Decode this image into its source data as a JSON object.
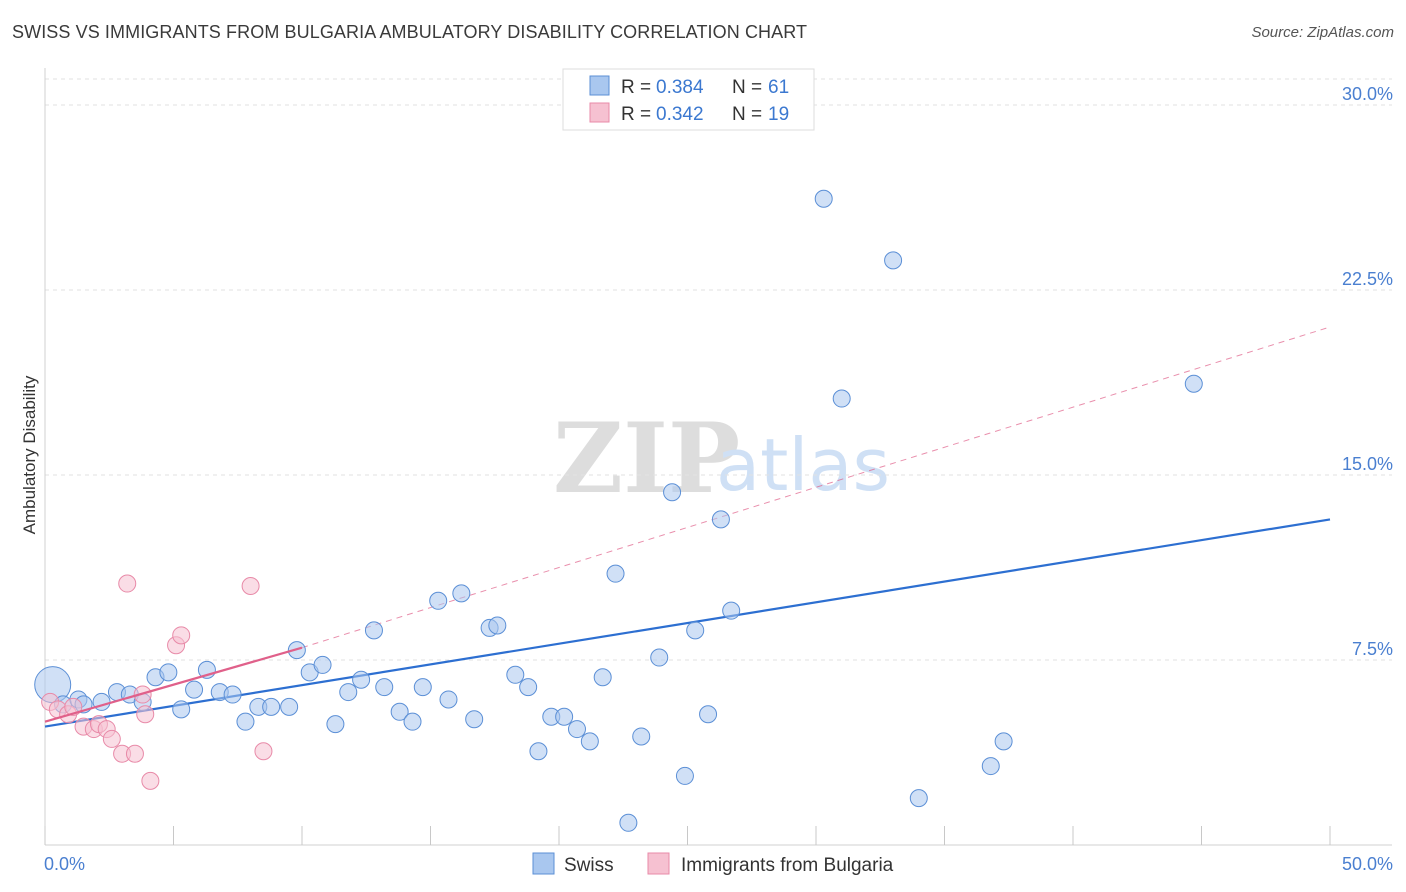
{
  "header": {
    "title": "SWISS VS IMMIGRANTS FROM BULGARIA AMBULATORY DISABILITY CORRELATION CHART",
    "source": "Source: ZipAtlas.com"
  },
  "watermark": {
    "zip": "ZIP",
    "atlas": "atlas"
  },
  "chart_data": {
    "type": "scatter",
    "title": "SWISS VS IMMIGRANTS FROM BULGARIA AMBULATORY DISABILITY CORRELATION CHART",
    "xlabel": "",
    "ylabel": "Ambulatory Disability",
    "xlim": [
      0,
      50
    ],
    "ylim": [
      0,
      31.5
    ],
    "x_tick_labels": [
      "0.0%",
      "50.0%"
    ],
    "y_ticks": [
      7.5,
      15.0,
      22.5,
      30.0
    ],
    "y_tick_labels": [
      "7.5%",
      "15.0%",
      "22.5%",
      "30.0%"
    ],
    "grid": true,
    "legend": {
      "placement": "top-center",
      "entries": [
        {
          "series": "Swiss",
          "r_label": "R =",
          "r_value": "0.384",
          "n_label": "N =",
          "n_value": "61"
        },
        {
          "series": "Immigrants from Bulgaria",
          "r_label": "R =",
          "r_value": "0.342",
          "n_label": "N =",
          "n_value": "19"
        }
      ]
    },
    "series": [
      {
        "name": "Swiss",
        "color": "#5b8fd6",
        "fill": "#a9c7ef",
        "trend": {
          "x0": 0,
          "y0": 4.8,
          "x1": 50,
          "y1": 13.2,
          "color": "#2d6fd1"
        },
        "points": [
          {
            "x": 0.3,
            "y": 6.5,
            "size": "large"
          },
          {
            "x": 0.7,
            "y": 5.7
          },
          {
            "x": 1.3,
            "y": 5.9
          },
          {
            "x": 1.5,
            "y": 5.7
          },
          {
            "x": 2.2,
            "y": 5.8
          },
          {
            "x": 2.8,
            "y": 6.2
          },
          {
            "x": 3.3,
            "y": 6.1
          },
          {
            "x": 3.8,
            "y": 5.8
          },
          {
            "x": 4.3,
            "y": 6.8
          },
          {
            "x": 4.8,
            "y": 7.0
          },
          {
            "x": 5.3,
            "y": 5.5
          },
          {
            "x": 5.8,
            "y": 6.3
          },
          {
            "x": 6.3,
            "y": 7.1
          },
          {
            "x": 6.8,
            "y": 6.2
          },
          {
            "x": 7.3,
            "y": 6.1
          },
          {
            "x": 7.8,
            "y": 5.0
          },
          {
            "x": 8.3,
            "y": 5.6
          },
          {
            "x": 8.8,
            "y": 5.6
          },
          {
            "x": 9.5,
            "y": 5.6
          },
          {
            "x": 9.8,
            "y": 7.9
          },
          {
            "x": 10.3,
            "y": 7.0
          },
          {
            "x": 10.8,
            "y": 7.3
          },
          {
            "x": 11.3,
            "y": 4.9
          },
          {
            "x": 11.8,
            "y": 6.2
          },
          {
            "x": 12.3,
            "y": 6.7
          },
          {
            "x": 12.8,
            "y": 8.7
          },
          {
            "x": 13.2,
            "y": 6.4
          },
          {
            "x": 13.8,
            "y": 5.4
          },
          {
            "x": 14.3,
            "y": 5.0
          },
          {
            "x": 14.7,
            "y": 6.4
          },
          {
            "x": 15.3,
            "y": 9.9
          },
          {
            "x": 15.7,
            "y": 5.9
          },
          {
            "x": 16.2,
            "y": 10.2
          },
          {
            "x": 16.7,
            "y": 5.1
          },
          {
            "x": 17.3,
            "y": 8.8
          },
          {
            "x": 17.6,
            "y": 8.9
          },
          {
            "x": 18.3,
            "y": 6.9
          },
          {
            "x": 18.8,
            "y": 6.4
          },
          {
            "x": 19.2,
            "y": 3.8
          },
          {
            "x": 19.7,
            "y": 5.2
          },
          {
            "x": 20.2,
            "y": 5.2
          },
          {
            "x": 20.7,
            "y": 4.7
          },
          {
            "x": 21.2,
            "y": 4.2
          },
          {
            "x": 21.7,
            "y": 6.8
          },
          {
            "x": 22.2,
            "y": 11.0
          },
          {
            "x": 22.7,
            "y": 0.9
          },
          {
            "x": 23.2,
            "y": 4.4
          },
          {
            "x": 23.9,
            "y": 7.6
          },
          {
            "x": 24.4,
            "y": 14.3
          },
          {
            "x": 24.9,
            "y": 2.8
          },
          {
            "x": 25.3,
            "y": 8.7
          },
          {
            "x": 25.8,
            "y": 5.3
          },
          {
            "x": 26.3,
            "y": 13.2
          },
          {
            "x": 26.7,
            "y": 9.5
          },
          {
            "x": 30.3,
            "y": 26.2
          },
          {
            "x": 31.0,
            "y": 18.1
          },
          {
            "x": 33.0,
            "y": 23.7
          },
          {
            "x": 34.0,
            "y": 1.9
          },
          {
            "x": 36.8,
            "y": 3.2
          },
          {
            "x": 37.3,
            "y": 4.2
          },
          {
            "x": 44.7,
            "y": 18.7
          }
        ]
      },
      {
        "name": "Immigrants from Bulgaria",
        "color": "#e88aa8",
        "fill": "#f6c1d1",
        "trend": {
          "x0": 0,
          "y0": 5.0,
          "x1": 10,
          "y1": 8.0,
          "x_dash_end": 50,
          "y_dash_end": 21.0,
          "color": "#e0608a"
        },
        "points": [
          {
            "x": 0.2,
            "y": 5.8
          },
          {
            "x": 0.5,
            "y": 5.5
          },
          {
            "x": 0.9,
            "y": 5.3
          },
          {
            "x": 1.1,
            "y": 5.6
          },
          {
            "x": 1.5,
            "y": 4.8
          },
          {
            "x": 1.9,
            "y": 4.7
          },
          {
            "x": 2.1,
            "y": 4.9
          },
          {
            "x": 2.4,
            "y": 4.7
          },
          {
            "x": 2.6,
            "y": 4.3
          },
          {
            "x": 3.0,
            "y": 3.7
          },
          {
            "x": 3.2,
            "y": 10.6
          },
          {
            "x": 3.5,
            "y": 3.7
          },
          {
            "x": 3.8,
            "y": 6.1
          },
          {
            "x": 3.9,
            "y": 5.3
          },
          {
            "x": 4.1,
            "y": 2.6
          },
          {
            "x": 5.1,
            "y": 8.1
          },
          {
            "x": 5.3,
            "y": 8.5
          },
          {
            "x": 8.0,
            "y": 10.5
          },
          {
            "x": 8.5,
            "y": 3.8
          }
        ]
      }
    ]
  },
  "colors": {
    "swiss_fill": "#a9c7ef",
    "swiss_stroke": "#5b8fd6",
    "bulgaria_fill": "#f6c1d1",
    "bulgaria_stroke": "#e88aa8",
    "tick_label": "#4a7fd0"
  }
}
